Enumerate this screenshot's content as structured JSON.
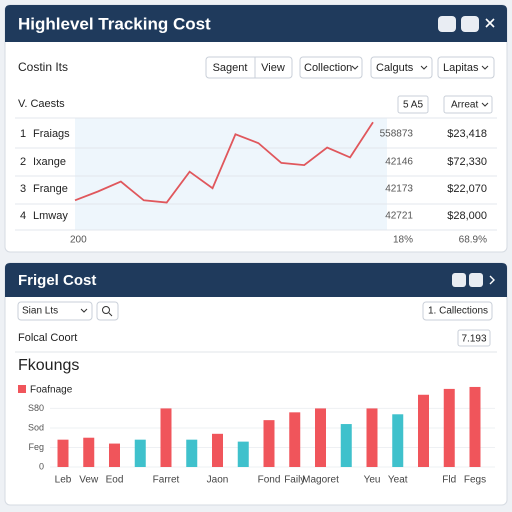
{
  "header": {
    "title": "Highlevel Tracking Cost"
  },
  "toolbar": {
    "label": "Costin Its",
    "buttons": [
      "Sagent",
      "View"
    ],
    "dropdowns": [
      "Collection",
      "Calguts",
      "Lapitas"
    ]
  },
  "table": {
    "header": [
      "V. Caests",
      "5 A5",
      "Arreat"
    ],
    "rows": [
      [
        "1",
        "Fraiags",
        "558873",
        "$23,418"
      ],
      [
        "2",
        "Ixange",
        "42146",
        "$72,330"
      ],
      [
        "3",
        "Frange",
        "42173",
        "$22,070"
      ],
      [
        "4",
        "Lmway",
        "42721",
        "$28,000"
      ]
    ],
    "footer": [
      "200",
      "18%",
      "68.9%"
    ]
  },
  "trend_chart": {
    "type": "line",
    "color": "#e0575c",
    "values": [
      27,
      35,
      44,
      27,
      25,
      53,
      38,
      87,
      79,
      61,
      59,
      75,
      66,
      98
    ],
    "ylim": [
      0,
      100
    ]
  },
  "panel2": {
    "title": "Frigel Cost",
    "filter": "Sian Lts",
    "button": "1. Callections",
    "summary": [
      "Folcal Coort",
      "7.193"
    ]
  },
  "chart_data": {
    "type": "bar",
    "title": "Fkoungs",
    "categories": [
      "Leb",
      "Vew",
      "Eod",
      null,
      "Farret",
      null,
      "Jaon",
      null,
      "Fond",
      "Faily",
      "Magoret",
      null,
      "Yeu",
      "Yeat",
      null,
      "Fld",
      "Fegs"
    ],
    "series": [
      {
        "name": "Foafnage",
        "color": "#f0555b",
        "values": [
          1.4,
          1.5,
          1.2,
          1.4,
          3.0,
          1.4,
          1.7,
          1.3,
          2.4,
          2.8,
          3.0,
          2.2,
          3.0,
          2.7,
          3.7,
          4.0,
          4.1
        ]
      }
    ],
    "point_colors": [
      "#f0555b",
      "#f0555b",
      "#f0555b",
      "#3fc1cc",
      "#f0555b",
      "#3fc1cc",
      "#f0555b",
      "#3fc1cc",
      "#f0555b",
      "#f0555b",
      "#f0555b",
      "#3fc1cc",
      "#f0555b",
      "#3fc1cc",
      "#f0555b",
      "#f0555b",
      "#f0555b"
    ],
    "ylim": [
      0,
      4.2
    ],
    "yticks": [
      {
        "value": 0,
        "label": "0"
      },
      {
        "value": 1,
        "label": "Feg"
      },
      {
        "value": 2,
        "label": "Sod"
      },
      {
        "value": 3,
        "label": "S80"
      }
    ],
    "grid": true
  }
}
